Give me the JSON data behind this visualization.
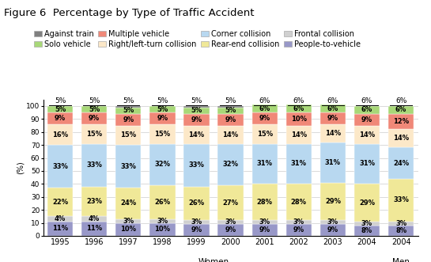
{
  "title": "Figure 6  Percentage by Type of Traffic Accident",
  "categories": [
    "1995",
    "1996",
    "1997",
    "1998",
    "1999",
    "2000",
    "2001",
    "2002",
    "2003",
    "2004",
    "2004"
  ],
  "top_labels": [
    "5%",
    "5%",
    "5%",
    "5%",
    "5%",
    "5%",
    "6%",
    "6%",
    "6%",
    "6%",
    "6%"
  ],
  "legend_labels_row1": [
    "Against train",
    "Solo vehicle",
    "Multiple vehicle",
    "Right/left-turn collision"
  ],
  "legend_labels_row2": [
    "Corner collision",
    "Rear-end collision",
    "Frontal collision",
    "People-to-vehicle"
  ],
  "segments": {
    "People-to-vehicle": [
      11,
      11,
      10,
      10,
      9,
      9,
      9,
      9,
      9,
      8,
      8
    ],
    "Frontal collision": [
      4,
      4,
      3,
      3,
      3,
      3,
      3,
      3,
      3,
      3,
      3
    ],
    "Rear-end collision": [
      22,
      23,
      24,
      26,
      26,
      27,
      28,
      28,
      29,
      29,
      33
    ],
    "Corner collision": [
      33,
      33,
      33,
      32,
      33,
      32,
      31,
      31,
      31,
      31,
      24
    ],
    "Right/left-turn collision": [
      16,
      15,
      15,
      15,
      14,
      14,
      15,
      14,
      14,
      14,
      14
    ],
    "Multiple vehicle": [
      9,
      9,
      9,
      9,
      9,
      9,
      9,
      10,
      9,
      9,
      12
    ],
    "Solo vehicle": [
      5,
      5,
      5,
      5,
      5,
      5,
      6,
      6,
      6,
      6,
      6
    ],
    "Against train": [
      0,
      0,
      1,
      0,
      1,
      1,
      0,
      0,
      0,
      0,
      0
    ]
  },
  "segment_order": [
    "People-to-vehicle",
    "Frontal collision",
    "Rear-end collision",
    "Corner collision",
    "Right/left-turn collision",
    "Multiple vehicle",
    "Solo vehicle",
    "Against train"
  ],
  "color_map": {
    "Against train": "#808080",
    "Solo vehicle": "#a8d878",
    "Multiple vehicle": "#f08878",
    "Right/left-turn collision": "#fce8c8",
    "Corner collision": "#b8d8f0",
    "Rear-end collision": "#f0e898",
    "Frontal collision": "#d0d0d0",
    "People-to-vehicle": "#9898c8"
  },
  "ylabel": "(%)",
  "figsize": [
    5.45,
    3.31
  ],
  "dpi": 100
}
